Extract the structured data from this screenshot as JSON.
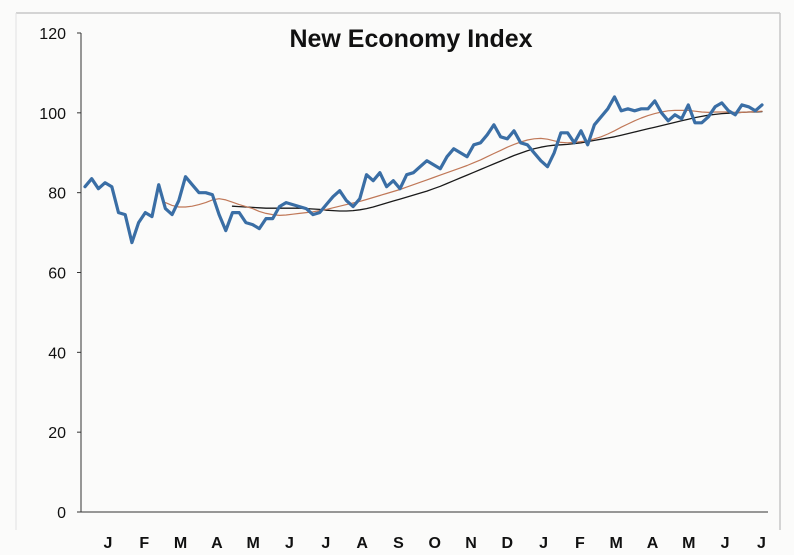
{
  "chart_data": {
    "type": "line",
    "title": "New Economy Index",
    "xlabel": "",
    "ylabel": "",
    "ylim": [
      0,
      120
    ],
    "yticks": [
      0,
      20,
      40,
      60,
      80,
      100,
      120
    ],
    "xticks": [
      "J",
      "F",
      "M",
      "A",
      "M",
      "J",
      "J",
      "A",
      "S",
      "O",
      "N",
      "D",
      "J",
      "F",
      "M",
      "A",
      "M",
      "J",
      "J"
    ],
    "grid": false,
    "legend": "none",
    "series": [
      {
        "color": "#3a6ea5",
        "values": [
          81.5,
          83.5,
          81,
          82.5,
          81.5,
          75,
          74.5,
          67.5,
          72.5,
          75,
          74,
          82,
          76,
          74.5,
          78,
          84,
          82,
          80,
          80,
          79.5,
          74.5,
          70.5,
          75,
          75,
          72.5,
          72,
          71,
          73.5,
          73.5,
          76.5,
          77.5,
          77,
          76.5,
          76,
          74.5,
          75,
          77,
          79,
          80.5,
          78,
          76.5,
          78.5,
          84.5,
          83,
          85,
          81.5,
          83,
          81,
          84.5,
          85,
          86.5,
          88,
          87,
          86,
          89,
          91,
          90,
          89,
          92,
          92.5,
          94.5,
          97,
          94,
          93.5,
          95.5,
          92.5,
          92,
          90,
          88,
          86.5,
          90,
          95,
          95,
          92.5,
          95.5,
          92,
          97,
          99,
          101,
          104,
          100.5,
          101,
          100.5,
          101,
          101,
          103,
          100,
          98,
          99.5,
          98.5,
          102,
          97.5,
          97.5,
          99,
          101.5,
          102.5,
          100.5,
          99.5,
          102,
          101.5,
          100.5,
          102
        ]
      },
      {
        "color": "#c07858",
        "values": [
          null,
          null,
          null,
          null,
          null,
          null,
          null,
          null,
          null,
          null,
          null,
          null,
          77.5,
          76.8,
          76.4,
          76.4,
          76.6,
          77,
          77.5,
          78.2,
          78.5,
          78.2,
          77.6,
          77,
          76.5,
          76,
          75.3,
          74.8,
          74.5,
          74.3,
          74.4,
          74.6,
          74.8,
          75,
          75.2,
          75.5,
          75.8,
          76.2,
          76.6,
          77,
          77.4,
          77.8,
          78.3,
          78.8,
          79.3,
          79.8,
          80.3,
          80.8,
          81.4,
          82,
          82.6,
          83.2,
          83.8,
          84.4,
          85,
          85.6,
          86.2,
          86.8,
          87.5,
          88.2,
          89,
          89.8,
          90.6,
          91.4,
          92.1,
          92.7,
          93.2,
          93.5,
          93.6,
          93.4,
          93,
          92.6,
          92.5,
          92.6,
          92.8,
          93,
          93.5,
          94,
          94.7,
          95.5,
          96.4,
          97.2,
          98,
          98.7,
          99.3,
          99.8,
          100.2,
          100.5,
          100.6,
          100.6,
          100.6,
          100.4,
          100.2,
          100.1,
          100.2,
          100.2,
          100.2,
          100.1,
          100.1,
          100.2,
          100.3,
          100.4
        ]
      },
      {
        "color": "#1a1a1a",
        "values": [
          null,
          null,
          null,
          null,
          null,
          null,
          null,
          null,
          null,
          null,
          null,
          null,
          null,
          null,
          null,
          null,
          null,
          null,
          null,
          null,
          null,
          null,
          76.6,
          76.5,
          76.4,
          76.3,
          76.2,
          76.1,
          76.1,
          76.1,
          76.1,
          76.1,
          76.1,
          76,
          75.9,
          75.8,
          75.6,
          75.5,
          75.4,
          75.4,
          75.5,
          75.7,
          76,
          76.4,
          76.9,
          77.4,
          77.9,
          78.4,
          78.9,
          79.4,
          79.9,
          80.4,
          81,
          81.6,
          82.3,
          83,
          83.7,
          84.4,
          85.1,
          85.8,
          86.5,
          87.2,
          87.9,
          88.6,
          89.3,
          89.9,
          90.5,
          91,
          91.4,
          91.7,
          91.9,
          92,
          92.1,
          92.3,
          92.5,
          92.8,
          93.1,
          93.4,
          93.7,
          94,
          94.4,
          94.8,
          95.2,
          95.6,
          96,
          96.4,
          96.8,
          97.2,
          97.6,
          98,
          98.4,
          98.8,
          99.1,
          99.4,
          99.6,
          99.8,
          99.9,
          100,
          100.1,
          100.2,
          100.2,
          100.3
        ]
      }
    ]
  }
}
